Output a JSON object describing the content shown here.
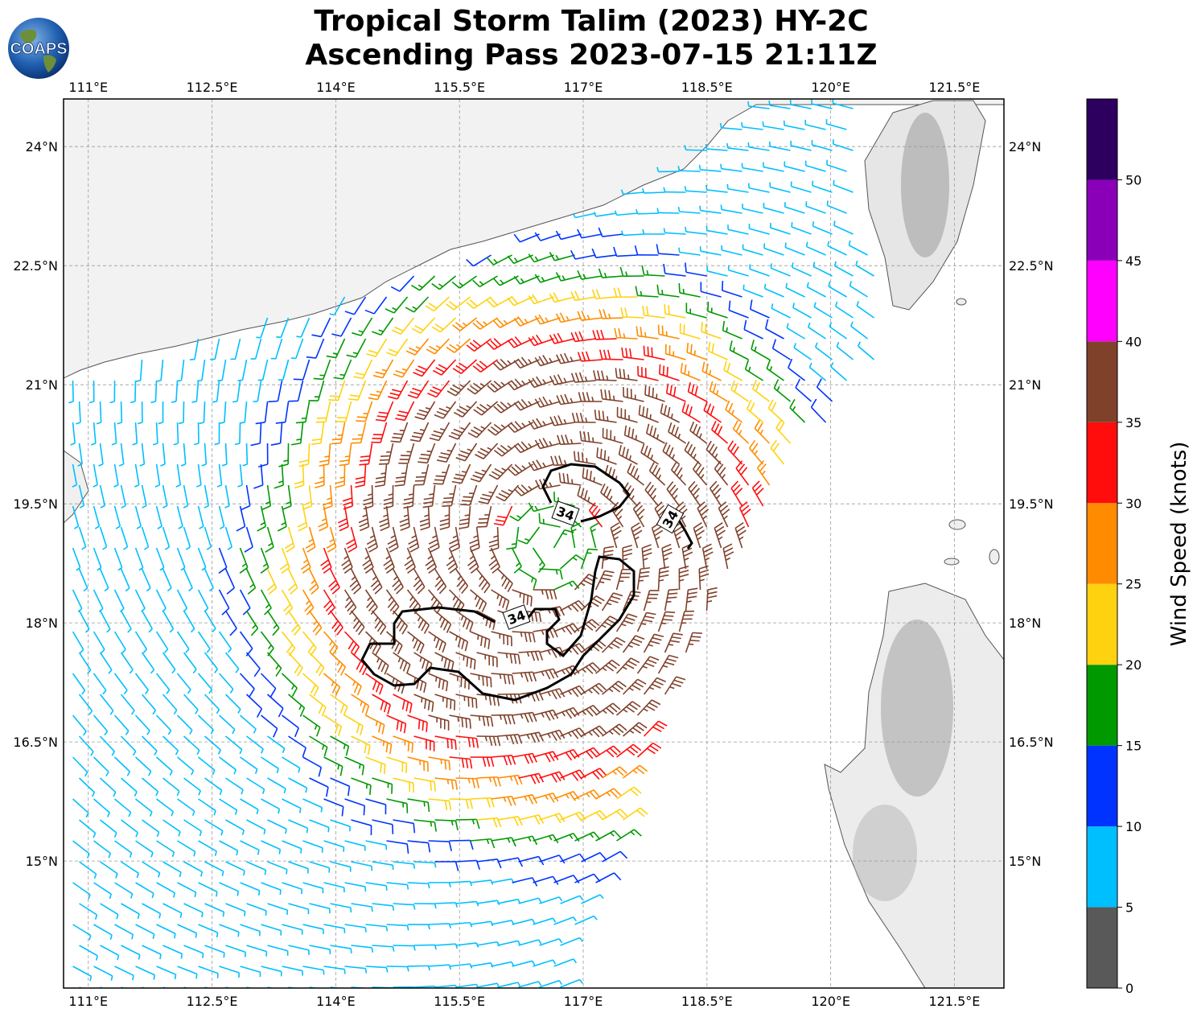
{
  "header": {
    "title_line1": "Tropical Storm Talim (2023) HY-2C",
    "title_line2": "Ascending Pass 2023-07-15 21:11Z",
    "logo_text": "COAPS"
  },
  "map": {
    "lon_range": [
      110.7,
      122.1
    ],
    "lat_range": [
      13.4,
      24.6
    ],
    "lon_ticks": [
      "111°E",
      "112.5°E",
      "114°E",
      "115.5°E",
      "117°E",
      "118.5°E",
      "120°E",
      "121.5°E"
    ],
    "lat_ticks": [
      "24°N",
      "22.5°N",
      "21°N",
      "19.5°N",
      "18°N",
      "16.5°N",
      "15°N"
    ],
    "gridlines": true,
    "storm_center": {
      "lon": 116.6,
      "lat": 19.0
    },
    "contour_label": "34",
    "contour_label_count": 3
  },
  "colorbar": {
    "label": "Wind Speed (knots)",
    "tick_labels": [
      "0",
      "5",
      "10",
      "15",
      "20",
      "25",
      "30",
      "35",
      "40",
      "45",
      "50"
    ],
    "bins": [
      {
        "from": 0,
        "to": 5,
        "color": "#595959"
      },
      {
        "from": 5,
        "to": 10,
        "color": "#00bfff"
      },
      {
        "from": 10,
        "to": 15,
        "color": "#0033ff"
      },
      {
        "from": 15,
        "to": 20,
        "color": "#009900"
      },
      {
        "from": 20,
        "to": 25,
        "color": "#ffd20f"
      },
      {
        "from": 25,
        "to": 30,
        "color": "#ff8c00"
      },
      {
        "from": 30,
        "to": 35,
        "color": "#ff0d0d"
      },
      {
        "from": 35,
        "to": 40,
        "color": "#80412a"
      },
      {
        "from": 40,
        "to": 45,
        "color": "#ff00ff"
      },
      {
        "from": 45,
        "to": 50,
        "color": "#8a00b8"
      },
      {
        "from": 50,
        "to": 55,
        "color": "#2d005f"
      }
    ]
  }
}
